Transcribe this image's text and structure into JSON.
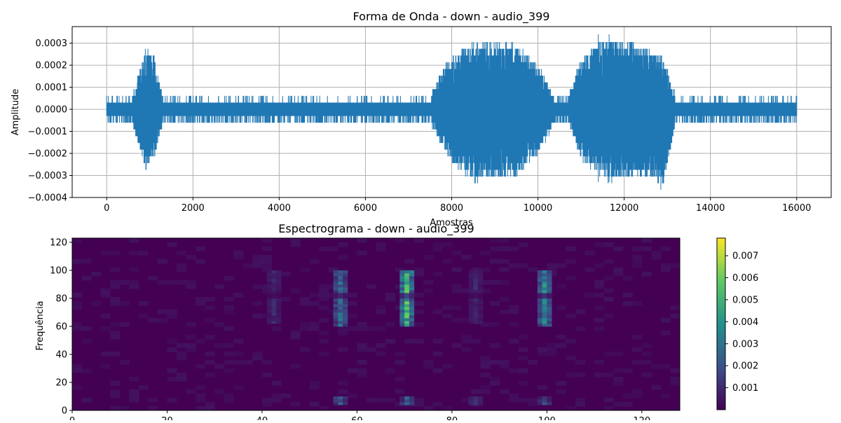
{
  "figure": {
    "waveform_title": "Forma de Onda - down - audio_399",
    "spectrogram_title": "Espectrograma - down - audio_399",
    "colors": {
      "waveform": "#1f77b4",
      "grid": "#b0b0b0",
      "colormap": [
        "#440154",
        "#3b528b",
        "#21918c",
        "#5ec962",
        "#fde725"
      ]
    }
  },
  "chart_data": [
    {
      "type": "line",
      "title": "Forma de Onda - down - audio_399",
      "xlabel": "Amostras",
      "ylabel": "Amplitude",
      "xlim": [
        -800,
        16800
      ],
      "ylim": [
        -0.0004,
        0.000375
      ],
      "xticks": [
        0,
        2000,
        4000,
        6000,
        8000,
        10000,
        12000,
        14000,
        16000
      ],
      "yticks": [
        -0.0004,
        -0.0003,
        -0.0002,
        -0.0001,
        0.0,
        0.0001,
        0.0002,
        0.0003
      ],
      "xtick_labels": [
        "0",
        "2000",
        "4000",
        "6000",
        "8000",
        "10000",
        "12000",
        "14000",
        "16000"
      ],
      "ytick_labels": [
        "−0.0004",
        "−0.0003",
        "−0.0002",
        "−0.0001",
        "0.0000",
        "0.0001",
        "0.0002",
        "0.0003"
      ],
      "grid": true,
      "series": [
        {
          "x_range": [
            0,
            16000
          ],
          "baseline_range": [
            -6e-05,
            6e-05
          ],
          "max_value": 0.00034,
          "min_value": -0.000365,
          "envelope": [
            {
              "x": 0,
              "max": 6e-05,
              "min": -6e-05
            },
            {
              "x": 600,
              "max": 6e-05,
              "min": -6e-05
            },
            {
              "x": 900,
              "max": 0.00027,
              "min": -0.00027
            },
            {
              "x": 1100,
              "max": 0.00024,
              "min": -0.00022
            },
            {
              "x": 1300,
              "max": 6e-05,
              "min": -6e-05
            },
            {
              "x": 7500,
              "max": 6e-05,
              "min": -6e-05
            },
            {
              "x": 7900,
              "max": 0.00022,
              "min": -0.00022
            },
            {
              "x": 8500,
              "max": 0.0003,
              "min": -0.00033
            },
            {
              "x": 9500,
              "max": 0.0003,
              "min": -0.0003
            },
            {
              "x": 10000,
              "max": 0.0002,
              "min": -0.0002
            },
            {
              "x": 10400,
              "max": 6e-05,
              "min": -6e-05
            },
            {
              "x": 10700,
              "max": 6e-05,
              "min": -6e-05
            },
            {
              "x": 11000,
              "max": 0.00023,
              "min": -0.00023
            },
            {
              "x": 11600,
              "max": 0.00033,
              "min": -0.00033
            },
            {
              "x": 12500,
              "max": 0.00028,
              "min": -0.0003
            },
            {
              "x": 12900,
              "max": 0.00023,
              "min": -0.00036
            },
            {
              "x": 13200,
              "max": 6e-05,
              "min": -6e-05
            },
            {
              "x": 16000,
              "max": 6e-05,
              "min": -6e-05
            }
          ]
        }
      ]
    },
    {
      "type": "heatmap",
      "title": "Espectrograma - down - audio_399",
      "xlabel": "",
      "ylabel": "Frequência",
      "xlim": [
        0,
        128
      ],
      "ylim": [
        0,
        123
      ],
      "xticks": [
        0,
        20,
        40,
        60,
        80,
        100,
        120
      ],
      "yticks": [
        0,
        20,
        40,
        60,
        80,
        100,
        120
      ],
      "colormap": "viridis",
      "colorbar": {
        "range": [
          0,
          0.0078
        ],
        "ticks": [
          0.001,
          0.002,
          0.003,
          0.004,
          0.005,
          0.006,
          0.007
        ],
        "tick_labels": [
          "0.001",
          "0.002",
          "0.003",
          "0.004",
          "0.005",
          "0.006",
          "0.007"
        ]
      },
      "hotspots": [
        {
          "x": 42.5,
          "y_range": [
            62,
            100
          ],
          "value": 0.0012
        },
        {
          "x": 56.5,
          "y_range": [
            60,
            100
          ],
          "value": 0.0035
        },
        {
          "x": 56.5,
          "y_range": [
            4,
            10
          ],
          "value": 0.0032
        },
        {
          "x": 70.5,
          "y_range": [
            60,
            100
          ],
          "value": 0.0065
        },
        {
          "x": 70.5,
          "y_range": [
            4,
            10
          ],
          "value": 0.0028
        },
        {
          "x": 85,
          "y_range": [
            62,
            100
          ],
          "value": 0.0012
        },
        {
          "x": 85,
          "y_range": [
            4,
            10
          ],
          "value": 0.0015
        },
        {
          "x": 99.5,
          "y_range": [
            60,
            100
          ],
          "value": 0.0045
        },
        {
          "x": 99.5,
          "y_range": [
            4,
            10
          ],
          "value": 0.0022
        }
      ]
    }
  ]
}
